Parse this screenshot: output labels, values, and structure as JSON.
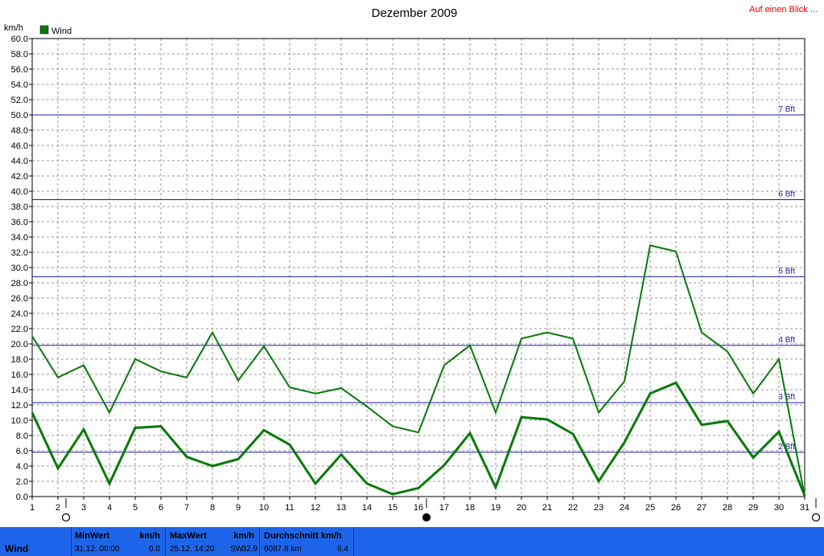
{
  "header": {
    "title": "Dezember 2009",
    "link": "Auf einen Blick ..."
  },
  "legend": {
    "label": "Wind",
    "color": "#0a7a0a"
  },
  "chart_data": {
    "type": "line",
    "title": "Dezember 2009",
    "ylabel": "km/h",
    "xlabel": "",
    "ylim": [
      0,
      60
    ],
    "ytick_step": 2,
    "x": [
      1,
      2,
      3,
      4,
      5,
      6,
      7,
      8,
      9,
      10,
      11,
      12,
      13,
      14,
      15,
      16,
      17,
      18,
      19,
      20,
      21,
      22,
      23,
      24,
      25,
      26,
      27,
      28,
      29,
      30,
      31
    ],
    "series": [
      {
        "name": "Wind",
        "role": "max",
        "color": "#0a7a0a",
        "values": [
          21.0,
          15.6,
          17.2,
          11.0,
          18.0,
          16.4,
          15.6,
          21.5,
          15.2,
          19.7,
          14.3,
          13.5,
          14.2,
          11.8,
          9.2,
          8.4,
          17.2,
          19.8,
          11.0,
          20.7,
          21.5,
          20.7,
          11.0,
          15.1,
          32.9,
          32.1,
          21.5,
          19.0,
          13.5,
          18.0,
          0.0
        ]
      },
      {
        "name": "",
        "role": "avg",
        "color": "#0a7a0a",
        "values": [
          11.0,
          3.7,
          8.8,
          1.7,
          9.0,
          9.2,
          5.2,
          4.0,
          4.9,
          8.7,
          6.8,
          1.7,
          5.5,
          1.7,
          0.3,
          1.1,
          4.1,
          8.3,
          1.2,
          10.4,
          10.1,
          8.2,
          2.0,
          7.1,
          13.5,
          14.9,
          9.4,
          9.9,
          5.1,
          8.5,
          0.1
        ]
      }
    ],
    "beaufort_lines": [
      {
        "label": "2 Bft",
        "value": 5.8
      },
      {
        "label": "3 Bft",
        "value": 12.3
      },
      {
        "label": "4 Bft",
        "value": 19.8
      },
      {
        "label": "5 Bft",
        "value": 28.8
      },
      {
        "label": "6 Bft",
        "value": 38.9
      },
      {
        "label": "7 Bft",
        "value": 50.0
      }
    ],
    "grid": true,
    "legend_position": "top-left"
  },
  "moon_phases": [
    {
      "day": 2,
      "phase": "full-moon-icon"
    },
    {
      "day": 16,
      "phase": "new-moon-icon"
    },
    {
      "day": 31,
      "phase": "full-moon-icon"
    }
  ],
  "footer": {
    "name": "Wind",
    "min": {
      "header": "MinWert",
      "unit": "km/h",
      "time": "31.12.  00:00",
      "value": "0.0"
    },
    "max": {
      "header": "MaxWert",
      "unit": "km/h",
      "time": "25.12.  14:20",
      "dir": "SW",
      "value": "32.9"
    },
    "avg": {
      "header": "Durchschnitt km/h",
      "dist": "6087.8 km",
      "value": "6.4"
    }
  }
}
